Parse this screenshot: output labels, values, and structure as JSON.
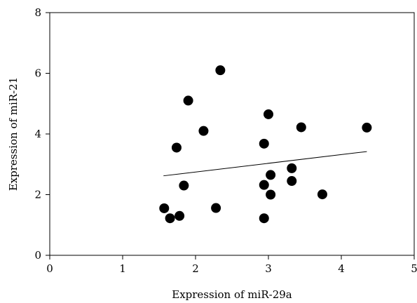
{
  "chart_data": {
    "type": "scatter",
    "title": "",
    "xlabel": "Expression of miR-29a",
    "ylabel": "Expression of miR-21",
    "xlim": [
      0,
      5
    ],
    "ylim": [
      0,
      8
    ],
    "x_ticks": [
      0,
      1,
      2,
      3,
      4,
      5
    ],
    "y_ticks": [
      0,
      2,
      4,
      6,
      8
    ],
    "grid": false,
    "legend": "none",
    "marker_color": "#000000",
    "points": [
      {
        "x": 1.57,
        "y": 1.55
      },
      {
        "x": 1.65,
        "y": 1.22
      },
      {
        "x": 1.74,
        "y": 3.55
      },
      {
        "x": 1.78,
        "y": 1.3
      },
      {
        "x": 1.84,
        "y": 2.3
      },
      {
        "x": 1.9,
        "y": 5.1
      },
      {
        "x": 2.11,
        "y": 4.1
      },
      {
        "x": 2.28,
        "y": 1.56
      },
      {
        "x": 2.34,
        "y": 6.1
      },
      {
        "x": 2.94,
        "y": 3.68
      },
      {
        "x": 2.94,
        "y": 2.32
      },
      {
        "x": 2.94,
        "y": 1.22
      },
      {
        "x": 3.0,
        "y": 4.65
      },
      {
        "x": 3.03,
        "y": 2.65
      },
      {
        "x": 3.03,
        "y": 2.0
      },
      {
        "x": 3.32,
        "y": 2.87
      },
      {
        "x": 3.32,
        "y": 2.45
      },
      {
        "x": 3.45,
        "y": 4.22
      },
      {
        "x": 3.74,
        "y": 2.01
      },
      {
        "x": 4.35,
        "y": 4.21
      }
    ],
    "trend_line": {
      "x": [
        1.56,
        4.35
      ],
      "y": [
        2.62,
        3.42
      ]
    }
  }
}
